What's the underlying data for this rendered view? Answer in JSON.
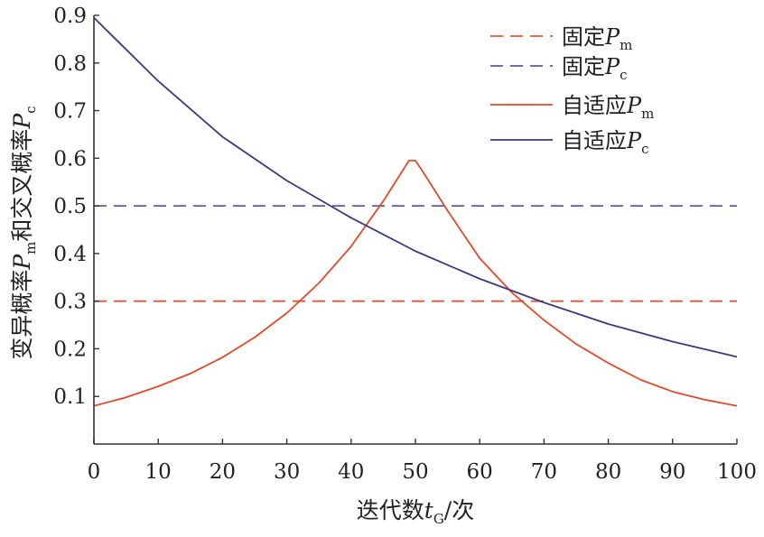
{
  "chart_data": {
    "type": "line",
    "xlabel": "迭代数tG/次",
    "xlabel_parts": {
      "main": "迭代数",
      "var": "t",
      "sub": "G",
      "tail": "/次"
    },
    "ylabel": "变异概率Pm和交叉概率Pc",
    "ylabel_parts": {
      "a": "变异概率",
      "var1": "P",
      "sub1": "m",
      "b": "和交叉概率",
      "var2": "P",
      "sub2": "c"
    },
    "xlim": [
      0,
      100
    ],
    "ylim": [
      0,
      0.9
    ],
    "xticks": [
      "0",
      "10",
      "20",
      "30",
      "40",
      "50",
      "60",
      "70",
      "80",
      "90",
      "100"
    ],
    "yticks": [
      "0.1",
      "0.2",
      "0.3",
      "0.4",
      "0.5",
      "0.6",
      "0.7",
      "0.8",
      "0.9"
    ],
    "legend_position": "top-right",
    "grid": false,
    "series": [
      {
        "name": "固定Pm",
        "label_main": "固定",
        "label_var": "P",
        "label_sub": "m",
        "style": "dashed",
        "color": "#e0583a",
        "x": [
          0,
          100
        ],
        "y": [
          0.3,
          0.3
        ]
      },
      {
        "name": "固定Pc",
        "label_main": "固定",
        "label_var": "P",
        "label_sub": "c",
        "style": "dashed",
        "color": "#5b5b9e",
        "x": [
          0,
          100
        ],
        "y": [
          0.5,
          0.5
        ]
      },
      {
        "name": "自适应Pm",
        "label_main": "自适应",
        "label_var": "P",
        "label_sub": "m",
        "style": "solid",
        "color": "#e04a2a",
        "x": [
          0,
          5,
          10,
          15,
          20,
          25,
          30,
          35,
          40,
          45,
          49,
          50,
          51,
          55,
          60,
          65,
          70,
          75,
          80,
          85,
          90,
          95,
          100
        ],
        "y": [
          0.08,
          0.098,
          0.121,
          0.148,
          0.182,
          0.224,
          0.275,
          0.338,
          0.415,
          0.51,
          0.595,
          0.595,
          0.575,
          0.49,
          0.39,
          0.318,
          0.26,
          0.21,
          0.17,
          0.135,
          0.11,
          0.093,
          0.08
        ]
      },
      {
        "name": "自适应Pc",
        "label_main": "自适应",
        "label_var": "P",
        "label_sub": "c",
        "style": "solid",
        "color": "#3a3a7e",
        "x": [
          0,
          10,
          20,
          30,
          40,
          50,
          60,
          70,
          80,
          90,
          100
        ],
        "y": [
          0.895,
          0.762,
          0.645,
          0.553,
          0.475,
          0.405,
          0.347,
          0.297,
          0.252,
          0.215,
          0.183
        ]
      }
    ]
  }
}
